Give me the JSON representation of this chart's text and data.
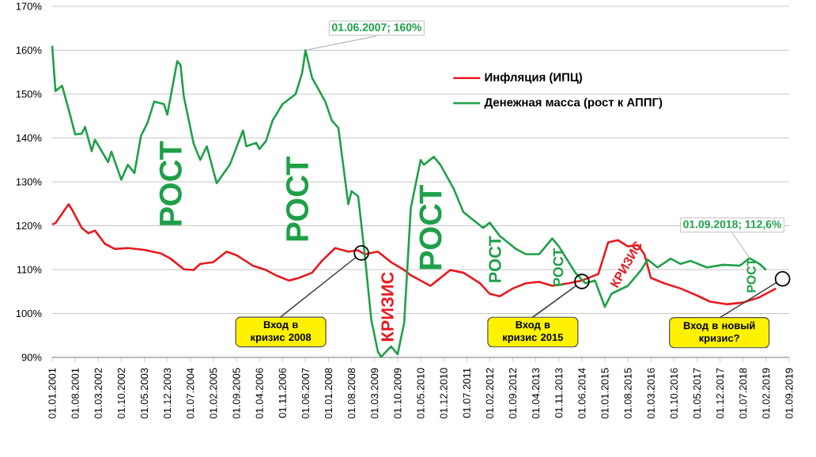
{
  "chart_data": {
    "type": "line",
    "legend": "top right",
    "grid": "y",
    "marker": "none",
    "line_style": "solid",
    "xlim": [
      "2001-01",
      "2019-09"
    ],
    "xticks": [
      {
        "value": "2001-01",
        "label": "01.01.2001"
      },
      {
        "value": "2001-08",
        "label": "01.08.2001"
      },
      {
        "value": "2002-03",
        "label": "01.03.2002"
      },
      {
        "value": "2002-10",
        "label": "01.10.2002"
      },
      {
        "value": "2003-05",
        "label": "01.05.2003"
      },
      {
        "value": "2003-12",
        "label": "01.12.2003"
      },
      {
        "value": "2004-07",
        "label": "01.07.2004"
      },
      {
        "value": "2005-02",
        "label": "01.02.2005"
      },
      {
        "value": "2005-09",
        "label": "01.09.2005"
      },
      {
        "value": "2006-04",
        "label": "01.04.2006"
      },
      {
        "value": "2006-11",
        "label": "01.11.2006"
      },
      {
        "value": "2007-06",
        "label": "01.06.2007"
      },
      {
        "value": "2008-01",
        "label": "01.01.2008"
      },
      {
        "value": "2008-08",
        "label": "01.08.2008"
      },
      {
        "value": "2009-03",
        "label": "01.03.2009"
      },
      {
        "value": "2009-10",
        "label": "01.10.2009"
      },
      {
        "value": "2010-05",
        "label": "01.05.2010"
      },
      {
        "value": "2010-12",
        "label": "01.12.2010"
      },
      {
        "value": "2011-07",
        "label": "01.07.2011"
      },
      {
        "value": "2012-02",
        "label": "01.02.2012"
      },
      {
        "value": "2012-09",
        "label": "01.09.2012"
      },
      {
        "value": "2013-04",
        "label": "01.04.2013"
      },
      {
        "value": "2013-11",
        "label": "01.11.2013"
      },
      {
        "value": "2014-06",
        "label": "01.06.2014"
      },
      {
        "value": "2015-01",
        "label": "01.01.2015"
      },
      {
        "value": "2015-08",
        "label": "01.08.2015"
      },
      {
        "value": "2016-03",
        "label": "01.03.2016"
      },
      {
        "value": "2016-10",
        "label": "01.10.2016"
      },
      {
        "value": "2017-05",
        "label": "01.05.2017"
      },
      {
        "value": "2017-12",
        "label": "01.12.2017"
      },
      {
        "value": "2018-07",
        "label": "01.07.2018"
      },
      {
        "value": "2019-02",
        "label": "01.02.2019"
      },
      {
        "value": "2019-09",
        "label": "01.09.2019"
      }
    ],
    "ylim": [
      90,
      170
    ],
    "yticks": [
      {
        "value": 90,
        "label": "90%"
      },
      {
        "value": 100,
        "label": "100%"
      },
      {
        "value": 110,
        "label": "110%"
      },
      {
        "value": 120,
        "label": "120%"
      },
      {
        "value": 130,
        "label": "130%"
      },
      {
        "value": 140,
        "label": "140%"
      },
      {
        "value": 150,
        "label": "150%"
      },
      {
        "value": 160,
        "label": "160%"
      },
      {
        "value": 170,
        "label": "170%"
      }
    ],
    "series": [
      {
        "name": "Инфляция (ИПЦ)",
        "color": "#e8191f",
        "x": [
          "2001-01",
          "2001-02",
          "2001-06",
          "2001-07",
          "2001-10",
          "2001-12",
          "2002-02",
          "2002-05",
          "2002-08",
          "2002-12",
          "2003-05",
          "2003-10",
          "2004-01",
          "2004-05",
          "2004-08",
          "2004-10",
          "2005-02",
          "2005-06",
          "2005-09",
          "2006-02",
          "2006-06",
          "2006-09",
          "2007-01",
          "2007-04",
          "2007-08",
          "2007-11",
          "2008-03",
          "2008-07",
          "2008-10",
          "2008-12",
          "2009-04",
          "2009-08",
          "2009-12",
          "2010-02",
          "2010-08",
          "2010-10",
          "2011-02",
          "2011-06",
          "2011-11",
          "2012-02",
          "2012-05",
          "2012-09",
          "2013-01",
          "2013-05",
          "2013-09",
          "2014-02",
          "2014-06",
          "2014-11",
          "2015-02",
          "2015-05",
          "2015-08",
          "2015-11",
          "2016-01",
          "2016-03",
          "2016-07",
          "2016-12",
          "2017-05",
          "2017-09",
          "2018-02",
          "2018-07",
          "2018-12",
          "2019-05"
        ],
        "values": [
          120.3,
          120.6,
          124.9,
          123.7,
          119.5,
          118.3,
          118.9,
          115.9,
          114.7,
          114.9,
          114.5,
          113.7,
          112.5,
          110.1,
          109.9,
          111.3,
          111.7,
          114.1,
          113.3,
          110.9,
          109.9,
          108.7,
          107.5,
          108.1,
          109.3,
          112,
          114.9,
          114.1,
          114.4,
          113.5,
          114.1,
          111.7,
          109.9,
          108.7,
          106.3,
          107.5,
          109.9,
          109.3,
          106.9,
          104.5,
          103.9,
          105.7,
          106.9,
          107.2,
          106.3,
          106.9,
          107.5,
          109,
          116.2,
          116.7,
          115.3,
          115.6,
          113.5,
          108.1,
          106.9,
          105.7,
          104.1,
          102.7,
          102.1,
          102.5,
          103.7,
          105.7
        ]
      },
      {
        "name": "Денежная масса (рост к АППГ)",
        "color": "#1fa048",
        "x": [
          "2001-01",
          "2001-02",
          "2001-04",
          "2001-06",
          "2001-08",
          "2001-10",
          "2001-11",
          "2002-01",
          "2002-02",
          "2002-06",
          "2002-07",
          "2002-10",
          "2002-12",
          "2003-02",
          "2003-04",
          "2003-06",
          "2003-08",
          "2003-11",
          "2003-12",
          "2004-03",
          "2004-04",
          "2004-05",
          "2004-08",
          "2004-10",
          "2004-12",
          "2005-03",
          "2005-07",
          "2005-11",
          "2005-12",
          "2006-03",
          "2006-04",
          "2006-06",
          "2006-08",
          "2006-11",
          "2007-03",
          "2007-05",
          "2007-06",
          "2007-08",
          "2007-12",
          "2008-02",
          "2008-04",
          "2008-07",
          "2008-08",
          "2008-10",
          "2008-12",
          "2009-02",
          "2009-04",
          "2009-05",
          "2009-08",
          "2009-10",
          "2009-12",
          "2010-02",
          "2010-05",
          "2010-06",
          "2010-09",
          "2010-11",
          "2011-03",
          "2011-06",
          "2011-09",
          "2011-12",
          "2012-02",
          "2012-05",
          "2012-10",
          "2013-01",
          "2013-05",
          "2013-09",
          "2013-11",
          "2014-01",
          "2014-04",
          "2014-07",
          "2014-10",
          "2015-01",
          "2015-03",
          "2015-08",
          "2015-12",
          "2016-02",
          "2016-05",
          "2016-09",
          "2016-12",
          "2017-03",
          "2017-08",
          "2018-01",
          "2018-06",
          "2018-09",
          "2018-12",
          "2019-02"
        ],
        "values": [
          161,
          150.7,
          151.9,
          146.5,
          140.8,
          141,
          142.5,
          137,
          139.6,
          134.5,
          136.9,
          130.5,
          133.9,
          132,
          140.5,
          143.5,
          148.3,
          147.7,
          145.3,
          157.5,
          156.7,
          149.5,
          138.7,
          135,
          138.1,
          129.7,
          133.9,
          141.7,
          138.1,
          138.9,
          137.5,
          139.3,
          144,
          147.7,
          150,
          154.9,
          160,
          153.7,
          148.3,
          144,
          142.3,
          124.9,
          127.9,
          126.7,
          113.5,
          98.5,
          91.3,
          90.1,
          92.5,
          90.7,
          97.9,
          124,
          135,
          133.9,
          135.7,
          133.9,
          128.5,
          123.1,
          121.3,
          119.5,
          120.7,
          117.7,
          114.7,
          113.5,
          113.5,
          117.1,
          115.3,
          112.9,
          109.3,
          106.9,
          107.5,
          101.5,
          104.5,
          106.3,
          109.9,
          112.3,
          110.5,
          112.5,
          111.3,
          112,
          110.5,
          111.1,
          110.9,
          112.6,
          111.3,
          109.9
        ]
      }
    ],
    "annotations": [
      {
        "text": "01.06.2007; 160%",
        "x": "2007-06",
        "y": 160
      },
      {
        "text": "01.09.2018; 112,6%",
        "x": "2018-09",
        "y": 112.6
      },
      {
        "text": "Вход в кризис 2008",
        "x": "2008-11",
        "y": 113.8
      },
      {
        "text": "Вход в кризис 2015",
        "x": "2014-06",
        "y": 107.3
      },
      {
        "text": "Вход в новый кризис?",
        "x": "2019-07",
        "y": 107.9
      },
      "РОСТ",
      "РОСТ",
      "КРИЗИС",
      "РОСТ",
      "РОСТ",
      "РОСТ",
      "КРИЗИС",
      "РОСТ"
    ]
  }
}
